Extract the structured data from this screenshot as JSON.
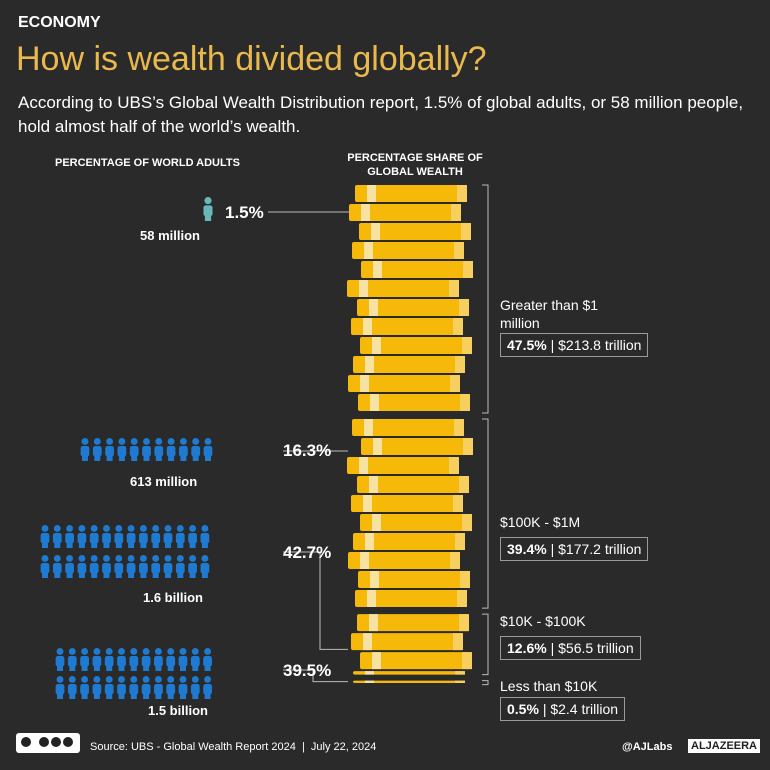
{
  "header": {
    "category": "ECONOMY",
    "title": "How is wealth divided globally?",
    "subtitle": "According to UBS’s Global Wealth Distribution report, 1.5% of global adults, or 58 million people, hold almost half of the world’s wealth."
  },
  "columns": {
    "left": "PERCENTAGE OF WORLD ADULTS",
    "right": "PERCENTAGE SHARE OF GLOBAL WEALTH"
  },
  "groups": [
    {
      "adults": "1.5%",
      "count": "58 million",
      "bracket": "Greater than $1 million",
      "wealth": {
        "value": 47.5,
        "label": "47.5%"
      },
      "amount": "| $213.8 trillion"
    },
    {
      "adults": "16.3%",
      "count": "613 million",
      "bracket": "$100K - $1M",
      "wealth": {
        "value": 39.4,
        "label": "39.4%"
      },
      "amount": "| $177.2 trillion"
    },
    {
      "adults": "42.7%",
      "count": "1.6 billion",
      "bracket": "$10K - $100K",
      "wealth": {
        "value": 12.6,
        "label": "12.6%"
      },
      "amount": "| $56.5 trillion"
    },
    {
      "adults": "39.5%",
      "count": "1.5 billion",
      "bracket": "Less than $10K",
      "wealth": {
        "value": 0.5,
        "label": "0.5%"
      },
      "amount": "| $2.4 trillion"
    }
  ],
  "footer": {
    "source": "Source: UBS - Global Wealth Report 2024  |  July 22, 2024",
    "handle": "@AJLabs",
    "brand": "ALJAZEERA"
  }
}
